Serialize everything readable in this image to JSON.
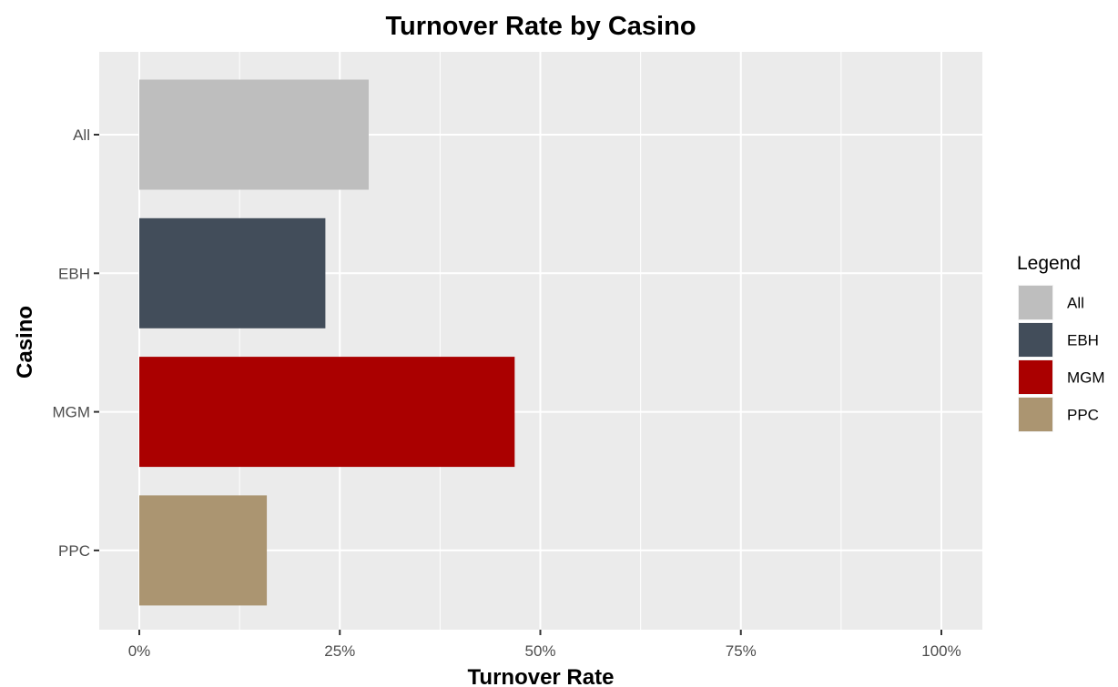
{
  "chart_data": {
    "type": "bar",
    "orientation": "horizontal",
    "title": "Turnover Rate by Casino",
    "xlabel": "Turnover Rate",
    "ylabel": "Casino",
    "categories": [
      "All",
      "EBH",
      "MGM",
      "PPC"
    ],
    "values": [
      0.286,
      0.232,
      0.468,
      0.159
    ],
    "colors": [
      "#bebebe",
      "#424d5a",
      "#aa0000",
      "#ab9571"
    ],
    "xlim": [
      0,
      1
    ],
    "x_ticks": [
      0,
      0.25,
      0.5,
      0.75,
      1
    ],
    "x_tick_labels": [
      "0%",
      "25%",
      "50%",
      "75%",
      "100%"
    ],
    "grid": true,
    "legend": {
      "title": "Legend",
      "position": "right",
      "entries": [
        "All",
        "EBH",
        "MGM",
        "PPC"
      ]
    },
    "panel_background": "#ebebeb",
    "grid_color": "#ffffff"
  }
}
